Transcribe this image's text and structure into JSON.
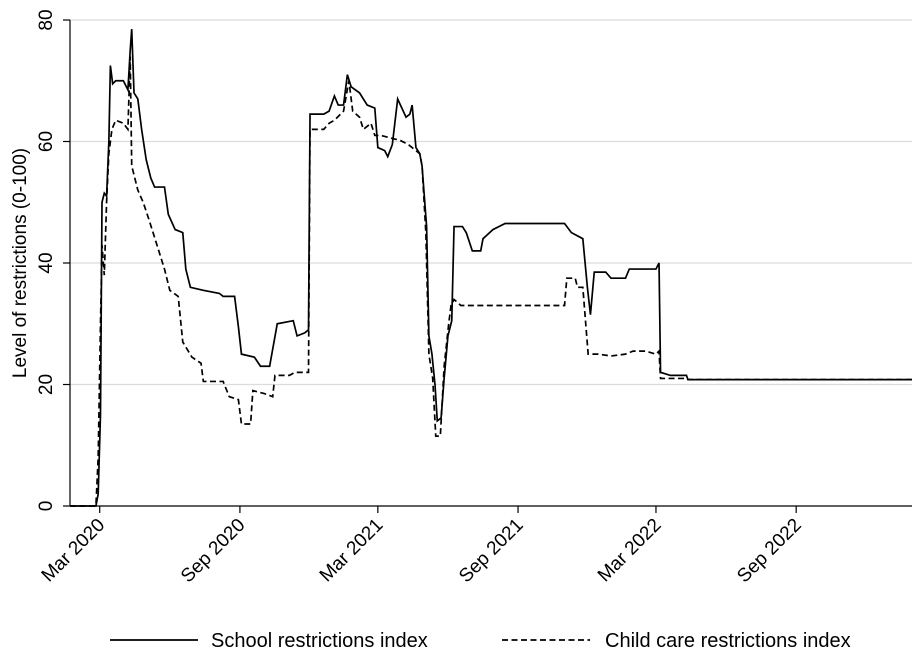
{
  "chart_data": {
    "type": "line",
    "title": "",
    "xlabel": "",
    "ylabel": "Level of restrictions (0-100)",
    "ylim": [
      0,
      80
    ],
    "xlim": [
      "2020-01-22",
      "2023-01-31"
    ],
    "yticks": [
      0,
      20,
      40,
      60,
      80
    ],
    "xticks": [
      {
        "date": "2020-03-01",
        "label": "Mar 2020"
      },
      {
        "date": "2020-09-01",
        "label": "Sep 2020"
      },
      {
        "date": "2021-03-01",
        "label": "Mar 2021"
      },
      {
        "date": "2021-09-01",
        "label": "Sep 2021"
      },
      {
        "date": "2022-03-01",
        "label": "Mar 2022"
      },
      {
        "date": "2022-09-01",
        "label": "Sep 2022"
      }
    ],
    "grid": "horizontal",
    "legend": "bottom",
    "series": [
      {
        "name": "School restrictions index",
        "style": "solid",
        "color": "#000000",
        "points": [
          [
            "2020-01-22",
            0
          ],
          [
            "2020-02-25",
            0
          ],
          [
            "2020-02-28",
            2
          ],
          [
            "2020-03-02",
            15
          ],
          [
            "2020-03-04",
            50
          ],
          [
            "2020-03-07",
            51.5
          ],
          [
            "2020-03-10",
            51
          ],
          [
            "2020-03-13",
            60
          ],
          [
            "2020-03-15",
            72.5
          ],
          [
            "2020-03-18",
            69.5
          ],
          [
            "2020-03-22",
            70
          ],
          [
            "2020-04-01",
            70
          ],
          [
            "2020-04-07",
            68.5
          ],
          [
            "2020-04-10",
            75
          ],
          [
            "2020-04-12",
            78.5
          ],
          [
            "2020-04-15",
            68
          ],
          [
            "2020-04-20",
            67
          ],
          [
            "2020-04-25",
            62
          ],
          [
            "2020-05-01",
            57
          ],
          [
            "2020-05-07",
            54
          ],
          [
            "2020-05-12",
            52.5
          ],
          [
            "2020-05-25",
            52.5
          ],
          [
            "2020-05-30",
            48
          ],
          [
            "2020-06-08",
            45.5
          ],
          [
            "2020-06-18",
            45
          ],
          [
            "2020-06-22",
            39
          ],
          [
            "2020-06-28",
            36
          ],
          [
            "2020-07-15",
            35.5
          ],
          [
            "2020-08-05",
            35
          ],
          [
            "2020-08-10",
            34.5
          ],
          [
            "2020-08-25",
            34.5
          ],
          [
            "2020-08-30",
            29.5
          ],
          [
            "2020-09-03",
            25
          ],
          [
            "2020-09-20",
            24.5
          ],
          [
            "2020-09-28",
            23
          ],
          [
            "2020-10-10",
            23
          ],
          [
            "2020-10-20",
            30
          ],
          [
            "2020-11-10",
            30.5
          ],
          [
            "2020-11-15",
            28
          ],
          [
            "2020-11-25",
            28.5
          ],
          [
            "2020-11-30",
            29
          ],
          [
            "2020-12-02",
            64.5
          ],
          [
            "2020-12-20",
            64.5
          ],
          [
            "2020-12-27",
            65
          ],
          [
            "2021-01-03",
            67.5
          ],
          [
            "2021-01-08",
            66
          ],
          [
            "2021-01-15",
            66
          ],
          [
            "2021-01-20",
            71
          ],
          [
            "2021-01-25",
            69
          ],
          [
            "2021-02-05",
            68
          ],
          [
            "2021-02-15",
            66
          ],
          [
            "2021-02-25",
            65.5
          ],
          [
            "2021-03-01",
            59
          ],
          [
            "2021-03-10",
            58.5
          ],
          [
            "2021-03-14",
            57.5
          ],
          [
            "2021-03-20",
            59.5
          ],
          [
            "2021-03-27",
            67
          ],
          [
            "2021-04-07",
            64
          ],
          [
            "2021-04-12",
            64.5
          ],
          [
            "2021-04-15",
            66
          ],
          [
            "2021-04-20",
            59
          ],
          [
            "2021-04-25",
            58
          ],
          [
            "2021-04-28",
            56
          ],
          [
            "2021-05-04",
            46
          ],
          [
            "2021-05-07",
            28
          ],
          [
            "2021-05-11",
            25
          ],
          [
            "2021-05-15",
            20
          ],
          [
            "2021-05-18",
            14
          ],
          [
            "2021-05-23",
            14.5
          ],
          [
            "2021-05-27",
            21
          ],
          [
            "2021-06-01",
            28
          ],
          [
            "2021-06-06",
            30.5
          ],
          [
            "2021-06-09",
            46
          ],
          [
            "2021-06-20",
            46
          ],
          [
            "2021-06-25",
            45
          ],
          [
            "2021-07-03",
            42
          ],
          [
            "2021-07-14",
            42
          ],
          [
            "2021-07-17",
            44
          ],
          [
            "2021-07-30",
            45.5
          ],
          [
            "2021-08-15",
            46.5
          ],
          [
            "2021-11-01",
            46.5
          ],
          [
            "2021-11-10",
            45
          ],
          [
            "2021-11-25",
            44
          ],
          [
            "2021-12-01",
            36
          ],
          [
            "2021-12-05",
            31.5
          ],
          [
            "2021-12-10",
            38.5
          ],
          [
            "2021-12-25",
            38.5
          ],
          [
            "2022-01-01",
            37.5
          ],
          [
            "2022-01-20",
            37.5
          ],
          [
            "2022-01-25",
            39
          ],
          [
            "2022-03-01",
            39
          ],
          [
            "2022-03-05",
            40
          ],
          [
            "2022-03-07",
            22
          ],
          [
            "2022-03-20",
            21.5
          ],
          [
            "2022-04-10",
            21.5
          ],
          [
            "2022-04-12",
            20.8
          ],
          [
            "2023-01-31",
            20.8
          ]
        ]
      },
      {
        "name": "Child care restrictions index",
        "style": "dashed",
        "color": "#000000",
        "points": [
          [
            "2020-01-22",
            0
          ],
          [
            "2020-02-25",
            0
          ],
          [
            "2020-02-28",
            8
          ],
          [
            "2020-03-02",
            30
          ],
          [
            "2020-03-04",
            43
          ],
          [
            "2020-03-07",
            38
          ],
          [
            "2020-03-10",
            50
          ],
          [
            "2020-03-13",
            58
          ],
          [
            "2020-03-17",
            62
          ],
          [
            "2020-03-22",
            63.5
          ],
          [
            "2020-04-01",
            63
          ],
          [
            "2020-04-07",
            62
          ],
          [
            "2020-04-10",
            74
          ],
          [
            "2020-04-12",
            56
          ],
          [
            "2020-04-20",
            52
          ],
          [
            "2020-04-27",
            50
          ],
          [
            "2020-05-05",
            47
          ],
          [
            "2020-05-15",
            43
          ],
          [
            "2020-05-25",
            39
          ],
          [
            "2020-06-01",
            35.5
          ],
          [
            "2020-06-12",
            34.5
          ],
          [
            "2020-06-18",
            27
          ],
          [
            "2020-06-30",
            24.5
          ],
          [
            "2020-07-12",
            23.5
          ],
          [
            "2020-07-15",
            20.5
          ],
          [
            "2020-08-10",
            20.5
          ],
          [
            "2020-08-18",
            18
          ],
          [
            "2020-08-30",
            17.5
          ],
          [
            "2020-09-03",
            13.5
          ],
          [
            "2020-09-15",
            13.5
          ],
          [
            "2020-09-18",
            19
          ],
          [
            "2020-10-03",
            18.5
          ],
          [
            "2020-10-14",
            18
          ],
          [
            "2020-10-17",
            21.5
          ],
          [
            "2020-11-05",
            21.5
          ],
          [
            "2020-11-12",
            22
          ],
          [
            "2020-11-30",
            22
          ],
          [
            "2020-12-02",
            62
          ],
          [
            "2020-12-20",
            62
          ],
          [
            "2020-12-27",
            63
          ],
          [
            "2021-01-03",
            63.5
          ],
          [
            "2021-01-15",
            65
          ],
          [
            "2021-01-22",
            70
          ],
          [
            "2021-01-27",
            65
          ],
          [
            "2021-02-05",
            64
          ],
          [
            "2021-02-10",
            62
          ],
          [
            "2021-02-20",
            63
          ],
          [
            "2021-02-25",
            61
          ],
          [
            "2021-03-05",
            61
          ],
          [
            "2021-03-20",
            60.5
          ],
          [
            "2021-03-30",
            60.2
          ],
          [
            "2021-04-10",
            59.5
          ],
          [
            "2021-04-25",
            58
          ],
          [
            "2021-04-28",
            56
          ],
          [
            "2021-05-03",
            45
          ],
          [
            "2021-05-07",
            25
          ],
          [
            "2021-05-12",
            21
          ],
          [
            "2021-05-16",
            11.5
          ],
          [
            "2021-05-22",
            11.5
          ],
          [
            "2021-05-27",
            23
          ],
          [
            "2021-06-02",
            30
          ],
          [
            "2021-06-05",
            33
          ],
          [
            "2021-06-09",
            34
          ],
          [
            "2021-06-18",
            33
          ],
          [
            "2021-11-01",
            33
          ],
          [
            "2021-11-04",
            37.5
          ],
          [
            "2021-11-15",
            37.5
          ],
          [
            "2021-11-18",
            36
          ],
          [
            "2021-11-25",
            36
          ],
          [
            "2021-12-02",
            25
          ],
          [
            "2021-12-15",
            25
          ],
          [
            "2022-01-01",
            24.7
          ],
          [
            "2022-01-20",
            25
          ],
          [
            "2022-01-30",
            25.5
          ],
          [
            "2022-02-15",
            25.5
          ],
          [
            "2022-03-01",
            25
          ],
          [
            "2022-03-05",
            25.5
          ],
          [
            "2022-03-07",
            21
          ],
          [
            "2022-04-10",
            21
          ],
          [
            "2022-04-12",
            20.8
          ],
          [
            "2023-01-31",
            20.8
          ]
        ]
      }
    ]
  }
}
